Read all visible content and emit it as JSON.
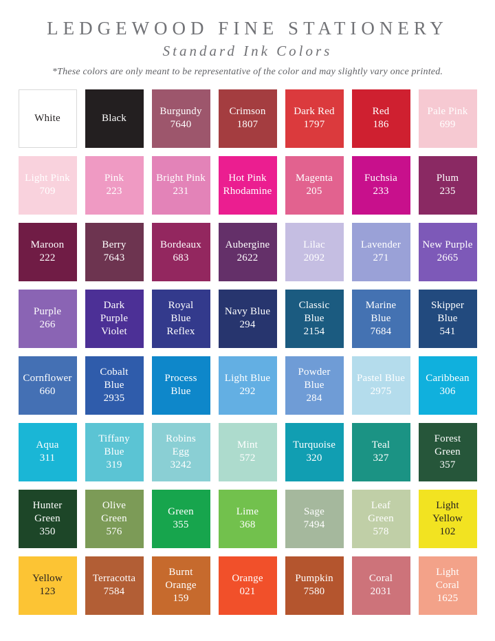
{
  "header": {
    "title": "LEDGEWOOD FINE STATIONERY",
    "subtitle": "Standard Ink Colors",
    "disclaimer": "*These colors are only meant to be representative of the color and may slightly vary once printed."
  },
  "chart_data": {
    "type": "table",
    "title": "LEDGEWOOD FINE STATIONERY",
    "subtitle": "Standard Ink Colors",
    "note": "*These colors are only meant to be representative of the color and may slightly vary once printed.",
    "columns": 7,
    "rows": 8,
    "default_text_color": "#ffffff",
    "swatches": [
      {
        "name": "White",
        "code": "",
        "hex": "#ffffff",
        "fg": "#231f20",
        "border": "#d8d8d8",
        "label": "White"
      },
      {
        "name": "Black",
        "code": "",
        "hex": "#231f20",
        "fg": "#ffffff",
        "border": "",
        "label": "Black"
      },
      {
        "name": "Burgundy",
        "code": "7640",
        "hex": "#9d566c",
        "fg": "#ffffff",
        "border": "",
        "label": "Burgundy\n7640"
      },
      {
        "name": "Crimson",
        "code": "1807",
        "hex": "#a43d40",
        "fg": "#ffffff",
        "border": "",
        "label": "Crimson\n1807"
      },
      {
        "name": "Dark Red",
        "code": "1797",
        "hex": "#db3a3d",
        "fg": "#ffffff",
        "border": "",
        "label": "Dark Red\n1797"
      },
      {
        "name": "Red",
        "code": "186",
        "hex": "#cf2030",
        "fg": "#ffffff",
        "border": "",
        "label": "Red\n186"
      },
      {
        "name": "Pale Pink",
        "code": "699",
        "hex": "#f6c9d2",
        "fg": "#ffffff",
        "border": "",
        "label": "Pale Pink\n699"
      },
      {
        "name": "Light Pink",
        "code": "709",
        "hex": "#f9d2dd",
        "fg": "#ffffff",
        "border": "",
        "label": "Light Pink\n709"
      },
      {
        "name": "Pink",
        "code": "223",
        "hex": "#ef9ac3",
        "fg": "#ffffff",
        "border": "",
        "label": "Pink\n223"
      },
      {
        "name": "Bright Pink",
        "code": "231",
        "hex": "#e383b8",
        "fg": "#ffffff",
        "border": "",
        "label": "Bright Pink\n231"
      },
      {
        "name": "Hot Pink",
        "code": "Rhodamine",
        "hex": "#eb1e90",
        "fg": "#ffffff",
        "border": "",
        "label": "Hot Pink\nRhodamine"
      },
      {
        "name": "Magenta",
        "code": "205",
        "hex": "#e2628f",
        "fg": "#ffffff",
        "border": "",
        "label": "Magenta\n205"
      },
      {
        "name": "Fuchsia",
        "code": "233",
        "hex": "#c8108c",
        "fg": "#ffffff",
        "border": "",
        "label": "Fuchsia\n233"
      },
      {
        "name": "Plum",
        "code": "235",
        "hex": "#8a2963",
        "fg": "#ffffff",
        "border": "",
        "label": "Plum\n235"
      },
      {
        "name": "Maroon",
        "code": "222",
        "hex": "#701c45",
        "fg": "#ffffff",
        "border": "",
        "label": "Maroon\n222"
      },
      {
        "name": "Berry",
        "code": "7643",
        "hex": "#6d3450",
        "fg": "#ffffff",
        "border": "",
        "label": "Berry\n7643"
      },
      {
        "name": "Bordeaux",
        "code": "683",
        "hex": "#93275f",
        "fg": "#ffffff",
        "border": "",
        "label": "Bordeaux\n683"
      },
      {
        "name": "Aubergine",
        "code": "2622",
        "hex": "#643069",
        "fg": "#ffffff",
        "border": "",
        "label": "Aubergine\n2622"
      },
      {
        "name": "Lilac",
        "code": "2092",
        "hex": "#c5bee2",
        "fg": "#ffffff",
        "border": "",
        "label": "Lilac\n2092"
      },
      {
        "name": "Lavender",
        "code": "271",
        "hex": "#9aa1d7",
        "fg": "#ffffff",
        "border": "",
        "label": "Lavender\n271"
      },
      {
        "name": "New Purple",
        "code": "2665",
        "hex": "#7d59b8",
        "fg": "#ffffff",
        "border": "",
        "label": "New Purple\n2665"
      },
      {
        "name": "Purple",
        "code": "266",
        "hex": "#8a64b4",
        "fg": "#ffffff",
        "border": "",
        "label": "Purple\n266"
      },
      {
        "name": "Dark Purple Violet",
        "code": "",
        "hex": "#4c3096",
        "fg": "#ffffff",
        "border": "",
        "label": "Dark\nPurple\nViolet"
      },
      {
        "name": "Royal Blue Reflex",
        "code": "",
        "hex": "#333a8c",
        "fg": "#ffffff",
        "border": "",
        "label": "Royal\nBlue\nReflex"
      },
      {
        "name": "Navy Blue",
        "code": "294",
        "hex": "#27356e",
        "fg": "#ffffff",
        "border": "",
        "label": "Navy Blue\n294"
      },
      {
        "name": "Classic Blue",
        "code": "2154",
        "hex": "#1b5b80",
        "fg": "#ffffff",
        "border": "",
        "label": "Classic\nBlue\n2154"
      },
      {
        "name": "Marine Blue",
        "code": "7684",
        "hex": "#4472b2",
        "fg": "#ffffff",
        "border": "",
        "label": "Marine\nBlue\n7684"
      },
      {
        "name": "Skipper Blue",
        "code": "541",
        "hex": "#224a7e",
        "fg": "#ffffff",
        "border": "",
        "label": "Skipper\nBlue\n541"
      },
      {
        "name": "Cornflower",
        "code": "660",
        "hex": "#4470b4",
        "fg": "#ffffff",
        "border": "",
        "label": "Cornflower\n660"
      },
      {
        "name": "Cobalt Blue",
        "code": "2935",
        "hex": "#2f5cab",
        "fg": "#ffffff",
        "border": "",
        "label": "Cobalt\nBlue\n2935"
      },
      {
        "name": "Process Blue",
        "code": "",
        "hex": "#0e87ca",
        "fg": "#ffffff",
        "border": "",
        "label": "Process\nBlue"
      },
      {
        "name": "Light Blue",
        "code": "292",
        "hex": "#63afe3",
        "fg": "#ffffff",
        "border": "",
        "label": "Light Blue\n292"
      },
      {
        "name": "Powder Blue",
        "code": "284",
        "hex": "#6f9cd6",
        "fg": "#ffffff",
        "border": "",
        "label": "Powder\nBlue\n284"
      },
      {
        "name": "Pastel Blue",
        "code": "2975",
        "hex": "#b4dcec",
        "fg": "#ffffff",
        "border": "",
        "label": "Pastel Blue\n2975"
      },
      {
        "name": "Caribbean",
        "code": "306",
        "hex": "#10b0dd",
        "fg": "#ffffff",
        "border": "",
        "label": "Caribbean\n306"
      },
      {
        "name": "Aqua",
        "code": "311",
        "hex": "#1ab6d6",
        "fg": "#ffffff",
        "border": "",
        "label": "Aqua\n311"
      },
      {
        "name": "Tiffany Blue",
        "code": "319",
        "hex": "#5bc4d4",
        "fg": "#ffffff",
        "border": "",
        "label": "Tiffany\nBlue\n319"
      },
      {
        "name": "Robins Egg",
        "code": "3242",
        "hex": "#8acfd4",
        "fg": "#ffffff",
        "border": "",
        "label": "Robins\nEgg\n3242"
      },
      {
        "name": "Mint",
        "code": "572",
        "hex": "#addbcd",
        "fg": "#ffffff",
        "border": "",
        "label": "Mint\n572"
      },
      {
        "name": "Turquoise",
        "code": "320",
        "hex": "#119eb2",
        "fg": "#ffffff",
        "border": "",
        "label": "Turquoise\n320"
      },
      {
        "name": "Teal",
        "code": "327",
        "hex": "#1b9384",
        "fg": "#ffffff",
        "border": "",
        "label": "Teal\n327"
      },
      {
        "name": "Forest Green",
        "code": "357",
        "hex": "#26563a",
        "fg": "#ffffff",
        "border": "",
        "label": "Forest\nGreen\n357"
      },
      {
        "name": "Hunter Green",
        "code": "350",
        "hex": "#1d4628",
        "fg": "#ffffff",
        "border": "",
        "label": "Hunter\nGreen\n350"
      },
      {
        "name": "Olive Green",
        "code": "576",
        "hex": "#7c9b57",
        "fg": "#ffffff",
        "border": "",
        "label": "Olive\nGreen\n576"
      },
      {
        "name": "Green",
        "code": "355",
        "hex": "#17a54d",
        "fg": "#ffffff",
        "border": "",
        "label": "Green\n355"
      },
      {
        "name": "Lime",
        "code": "368",
        "hex": "#72c14d",
        "fg": "#ffffff",
        "border": "",
        "label": "Lime\n368"
      },
      {
        "name": "Sage",
        "code": "7494",
        "hex": "#a5b89d",
        "fg": "#ffffff",
        "border": "",
        "label": "Sage\n7494"
      },
      {
        "name": "Leaf Green",
        "code": "578",
        "hex": "#c0cfa7",
        "fg": "#ffffff",
        "border": "",
        "label": "Leaf\nGreen\n578"
      },
      {
        "name": "Light Yellow",
        "code": "102",
        "hex": "#f2e321",
        "fg": "#231f20",
        "border": "",
        "label": "Light\nYellow\n102"
      },
      {
        "name": "Yellow",
        "code": "123",
        "hex": "#fcc434",
        "fg": "#231f20",
        "border": "",
        "label": "Yellow\n123"
      },
      {
        "name": "Terracotta",
        "code": "7584",
        "hex": "#b25e35",
        "fg": "#ffffff",
        "border": "",
        "label": "Terracotta\n7584"
      },
      {
        "name": "Burnt Orange",
        "code": "159",
        "hex": "#c66a2d",
        "fg": "#ffffff",
        "border": "",
        "label": "Burnt\nOrange\n159"
      },
      {
        "name": "Orange",
        "code": "021",
        "hex": "#f1502a",
        "fg": "#ffffff",
        "border": "",
        "label": "Orange\n021"
      },
      {
        "name": "Pumpkin",
        "code": "7580",
        "hex": "#b4552e",
        "fg": "#ffffff",
        "border": "",
        "label": "Pumpkin\n7580"
      },
      {
        "name": "Coral",
        "code": "2031",
        "hex": "#cd737a",
        "fg": "#ffffff",
        "border": "",
        "label": "Coral\n2031"
      },
      {
        "name": "Light Coral",
        "code": "1625",
        "hex": "#f3a289",
        "fg": "#ffffff",
        "border": "",
        "label": "Light\nCoral\n1625"
      }
    ]
  }
}
